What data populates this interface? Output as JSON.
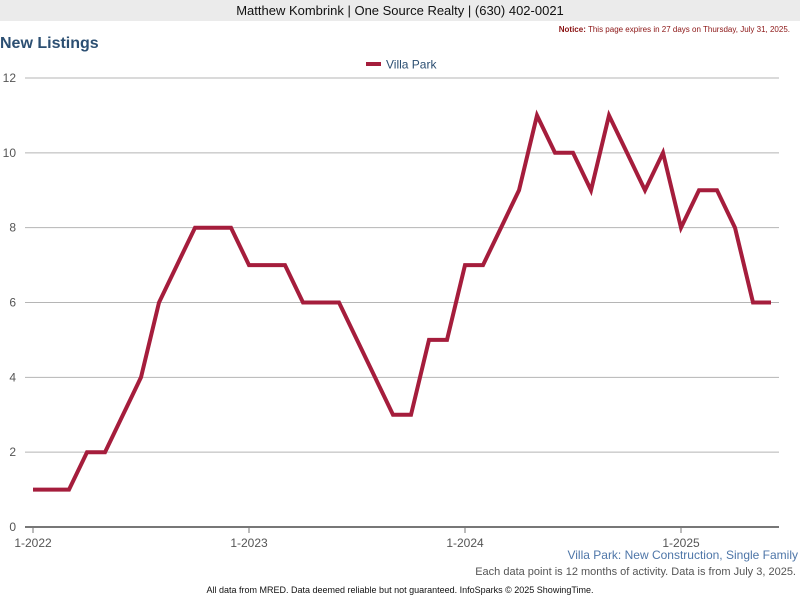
{
  "header": {
    "contact_line": "Matthew Kombrink | One Source Realty | (630) 402-0021"
  },
  "notice": {
    "label": "Notice:",
    "text": "This page expires in 27 days on Thursday, July 31, 2025."
  },
  "page": {
    "title": "New Listings"
  },
  "footnotes": {
    "series_description": "Villa Park: New Construction, Single Family",
    "data_note": "Each data point is 12 months of activity. Data is from July 3, 2025.",
    "attribution": "All data from MRED. Data deemed reliable but not guaranteed. InfoSparks © 2025 ShowingTime."
  },
  "colors": {
    "series_line": "#a51d3c",
    "title": "#2c4f72",
    "notice": "#8b1414"
  },
  "chart_data": {
    "type": "line",
    "title": "New Listings",
    "xlabel": "",
    "ylabel": "",
    "ylim": [
      0,
      12
    ],
    "yticks": [
      0,
      2,
      4,
      6,
      8,
      10,
      12
    ],
    "x_tick_labels": [
      {
        "label": "1-2022",
        "index": 0
      },
      {
        "label": "1-2023",
        "index": 12
      },
      {
        "label": "1-2024",
        "index": 24
      },
      {
        "label": "1-2025",
        "index": 36
      }
    ],
    "legend": "top-center",
    "grid": true,
    "x": [
      "1-2022",
      "2-2022",
      "3-2022",
      "4-2022",
      "5-2022",
      "6-2022",
      "7-2022",
      "8-2022",
      "9-2022",
      "10-2022",
      "11-2022",
      "12-2022",
      "1-2023",
      "2-2023",
      "3-2023",
      "4-2023",
      "5-2023",
      "6-2023",
      "7-2023",
      "8-2023",
      "9-2023",
      "10-2023",
      "11-2023",
      "12-2023",
      "1-2024",
      "2-2024",
      "3-2024",
      "4-2024",
      "5-2024",
      "6-2024",
      "7-2024",
      "8-2024",
      "9-2024",
      "10-2024",
      "11-2024",
      "12-2024",
      "1-2025",
      "2-2025",
      "3-2025",
      "4-2025",
      "5-2025",
      "6-2025"
    ],
    "series": [
      {
        "name": "Villa Park",
        "values": [
          1,
          1,
          1,
          2,
          2,
          3,
          4,
          6,
          7,
          8,
          8,
          8,
          7,
          7,
          7,
          6,
          6,
          6,
          5,
          4,
          3,
          3,
          5,
          5,
          7,
          7,
          8,
          9,
          11,
          10,
          10,
          9,
          11,
          10,
          9,
          10,
          8,
          9,
          9,
          8,
          6,
          6
        ]
      }
    ]
  }
}
